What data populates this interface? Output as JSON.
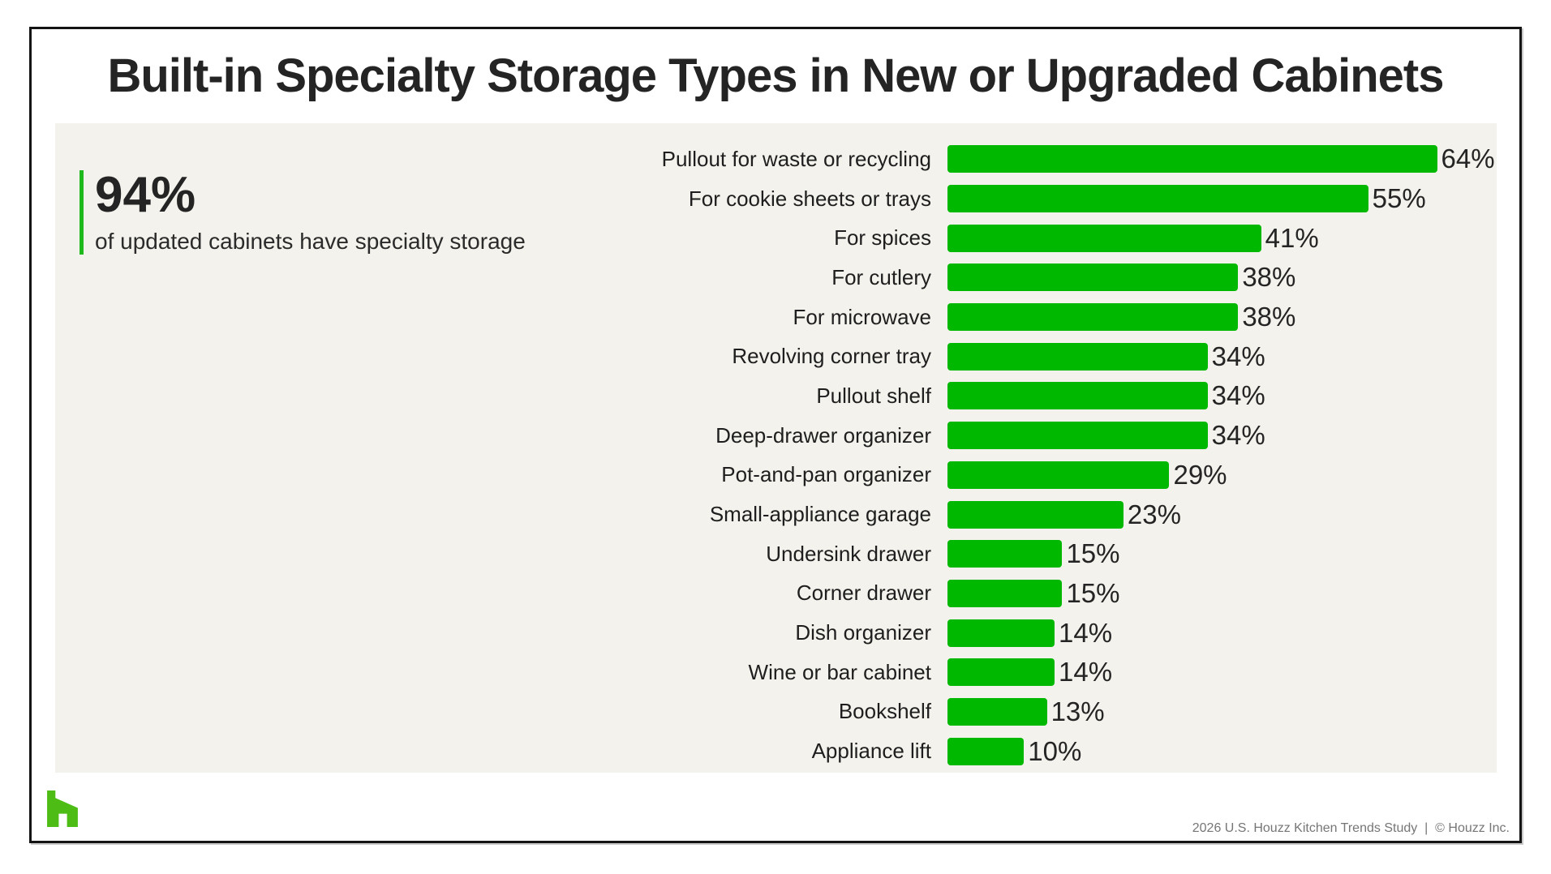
{
  "page": {
    "title": "Built-in Specialty Storage Types in New or Upgraded Cabinets",
    "footer": "2026 U.S. Houzz Kitchen Trends Study  |  © Houzz Inc."
  },
  "stat": {
    "value": "94%",
    "caption": "of updated cabinets have specialty storage"
  },
  "chart_data": {
    "type": "bar",
    "orientation": "horizontal",
    "title": "Built-in Specialty Storage Types in New or Upgraded Cabinets",
    "categories": [
      "Pullout for waste or recycling",
      "For cookie sheets or trays",
      "For spices",
      "For cutlery",
      "For microwave",
      "Revolving corner tray",
      "Pullout shelf",
      "Deep-drawer organizer",
      "Pot-and-pan organizer",
      "Small-appliance garage",
      "Undersink drawer",
      "Corner drawer",
      "Dish organizer",
      "Wine or bar cabinet",
      "Bookshelf",
      "Appliance lift"
    ],
    "values": [
      64,
      55,
      41,
      38,
      38,
      34,
      34,
      34,
      29,
      23,
      15,
      15,
      14,
      14,
      13,
      10
    ],
    "value_suffix": "%",
    "xlim": [
      0,
      70
    ],
    "grid": false,
    "legend": false,
    "data_labels": "outside-end"
  },
  "colors": {
    "bar_green": "#00b800",
    "accent_line_green": "#1db91d",
    "logo_green": "#4dbc15",
    "panel_background": "#f3f2ec",
    "text_dark": "#242424",
    "footer_gray": "#767676"
  }
}
